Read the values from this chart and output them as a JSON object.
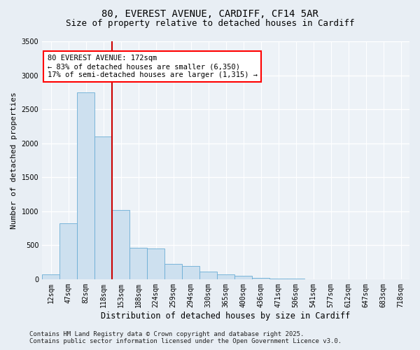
{
  "title_line1": "80, EVEREST AVENUE, CARDIFF, CF14 5AR",
  "title_line2": "Size of property relative to detached houses in Cardiff",
  "xlabel": "Distribution of detached houses by size in Cardiff",
  "ylabel": "Number of detached properties",
  "bar_labels": [
    "12sqm",
    "47sqm",
    "82sqm",
    "118sqm",
    "153sqm",
    "188sqm",
    "224sqm",
    "259sqm",
    "294sqm",
    "330sqm",
    "365sqm",
    "400sqm",
    "436sqm",
    "471sqm",
    "506sqm",
    "541sqm",
    "577sqm",
    "612sqm",
    "647sqm",
    "683sqm",
    "718sqm"
  ],
  "bar_values": [
    75,
    820,
    2750,
    2100,
    1020,
    460,
    450,
    230,
    195,
    110,
    75,
    48,
    20,
    10,
    5,
    3,
    2,
    1,
    1,
    0,
    0
  ],
  "bar_color": "#cde0ef",
  "bar_edgecolor": "#6aadd5",
  "ylim": [
    0,
    3500
  ],
  "yticks": [
    0,
    500,
    1000,
    1500,
    2000,
    2500,
    3000,
    3500
  ],
  "property_line_x": 4,
  "property_line_color": "#cc0000",
  "annotation_text": "80 EVEREST AVENUE: 172sqm\n← 83% of detached houses are smaller (6,350)\n17% of semi-detached houses are larger (1,315) →",
  "footer_line1": "Contains HM Land Registry data © Crown copyright and database right 2025.",
  "footer_line2": "Contains public sector information licensed under the Open Government Licence v3.0.",
  "bg_color": "#e8eef4",
  "plot_bg_color": "#edf2f7",
  "grid_color": "#ffffff",
  "title_fontsize": 10,
  "subtitle_fontsize": 9,
  "tick_fontsize": 7,
  "ylabel_fontsize": 8,
  "xlabel_fontsize": 8.5,
  "footer_fontsize": 6.5,
  "annot_fontsize": 7.5
}
